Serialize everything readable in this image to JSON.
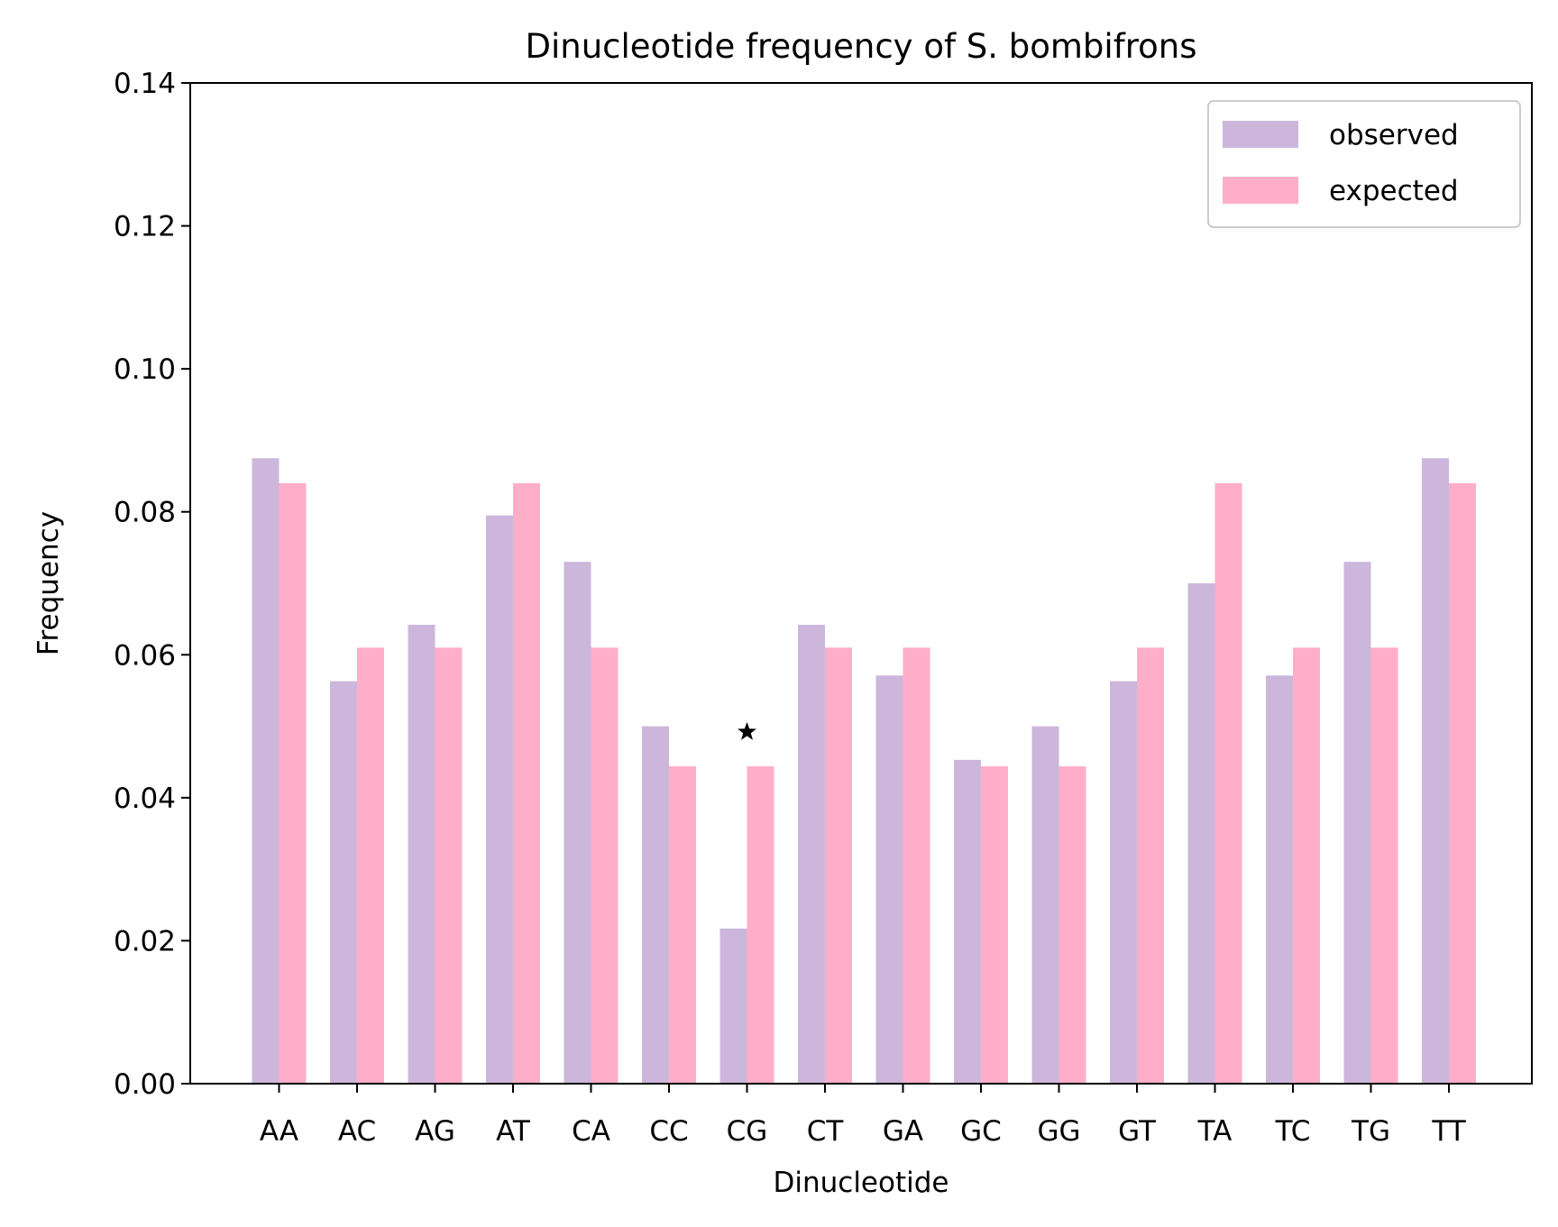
{
  "chart_data": {
    "type": "bar",
    "title": "Dinucleotide frequency of S. bombifrons",
    "xlabel": "Dinucleotide",
    "ylabel": "Frequency",
    "ylim": [
      0,
      0.14
    ],
    "yticks": [
      "0.00",
      "0.02",
      "0.04",
      "0.06",
      "0.08",
      "0.10",
      "0.12",
      "0.14"
    ],
    "ytick_values": [
      0,
      0.02,
      0.04,
      0.06,
      0.08,
      0.1,
      0.12,
      0.14
    ],
    "grid": false,
    "legend_position": "top-right",
    "categories": [
      "AA",
      "AC",
      "AG",
      "AT",
      "CA",
      "CC",
      "CG",
      "CT",
      "GA",
      "GC",
      "GG",
      "GT",
      "TA",
      "TC",
      "TG",
      "TT"
    ],
    "series": [
      {
        "name": "observed",
        "color": "#cdb6dc",
        "values": [
          0.0875,
          0.0563,
          0.0642,
          0.0795,
          0.073,
          0.05,
          0.0217,
          0.0642,
          0.0571,
          0.0453,
          0.05,
          0.0563,
          0.07,
          0.0571,
          0.073,
          0.0875
        ]
      },
      {
        "name": "expected",
        "color": "#feaec9",
        "values": [
          0.084,
          0.061,
          0.061,
          0.084,
          0.061,
          0.0444,
          0.0444,
          0.061,
          0.061,
          0.0444,
          0.0444,
          0.061,
          0.084,
          0.061,
          0.061,
          0.084
        ]
      }
    ],
    "annotations": [
      {
        "category": "CG",
        "marker": "star",
        "y": 0.0492
      }
    ]
  }
}
